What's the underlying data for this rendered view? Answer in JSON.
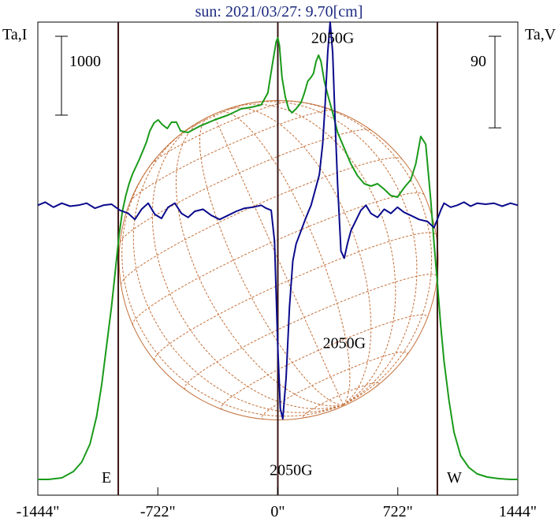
{
  "chart_data": {
    "type": "line",
    "title": "sun: 2021/03/27: 9.70[cm]",
    "left_axis_label": "Ta,I",
    "right_axis_label": "Ta,V",
    "left_scale_label": "1000",
    "right_scale_label": "90",
    "left_scale_value": 1000,
    "right_scale_value": 90,
    "xlim": [
      -1444,
      1444
    ],
    "x_ticks": [
      -1444,
      -722,
      0,
      722,
      1444
    ],
    "x_tick_labels": [
      "-1444\"",
      "-722\"",
      "0\"",
      "722\"",
      "1444\""
    ],
    "limb_labels": [
      "E",
      "W"
    ],
    "limb_positions": [
      -960,
      960
    ],
    "ta_i_ylim": [
      -200,
      5800
    ],
    "ta_v_ylim": [
      -285,
      180
    ],
    "colors": {
      "title": "#1b2a80",
      "ta_i": "#1a9a1a",
      "ta_v": "#0a0a8c",
      "disk": "#c4703a",
      "frame": "#000000",
      "markers": "#3a1414"
    },
    "annotations": [
      {
        "text": "2050G",
        "x": 330,
        "ta_v": 165
      },
      {
        "text": "2050G",
        "x": 80,
        "ta_v": -260
      },
      {
        "text": "2050G",
        "x": 400,
        "ta_v": -135
      }
    ],
    "series": [
      {
        "name": "Ta,I",
        "x": [
          -1444,
          -1380,
          -1300,
          -1230,
          -1180,
          -1130,
          -1090,
          -1060,
          -1030,
          -1000,
          -975,
          -955,
          -935,
          -915,
          -895,
          -875,
          -855,
          -835,
          -815,
          -790,
          -770,
          -745,
          -720,
          -695,
          -665,
          -640,
          -610,
          -585,
          -540,
          -470,
          -380,
          -300,
          -220,
          -160,
          -100,
          -60,
          -30,
          -10,
          0,
          10,
          25,
          45,
          65,
          85,
          110,
          140,
          160,
          180,
          200,
          215,
          230,
          245,
          260,
          280,
          300,
          330,
          360,
          400,
          440,
          480,
          520,
          560,
          600,
          640,
          680,
          720,
          760,
          800,
          830,
          860,
          890,
          920,
          940,
          960,
          980,
          1000,
          1030,
          1060,
          1100,
          1150,
          1200,
          1260,
          1330,
          1400,
          1444
        ],
        "values": [
          0,
          0,
          20,
          100,
          220,
          450,
          800,
          1200,
          1700,
          2200,
          2700,
          3100,
          3400,
          3600,
          3750,
          3870,
          3960,
          4050,
          4150,
          4280,
          4420,
          4520,
          4560,
          4500,
          4450,
          4530,
          4530,
          4420,
          4400,
          4480,
          4560,
          4620,
          4700,
          4720,
          4750,
          4900,
          5300,
          5550,
          5600,
          5500,
          5100,
          4850,
          4700,
          4650,
          4700,
          4780,
          4900,
          5050,
          5100,
          5150,
          5300,
          5380,
          5300,
          5050,
          4880,
          4650,
          4400,
          4200,
          4000,
          3850,
          3750,
          3720,
          3750,
          3680,
          3600,
          3580,
          3700,
          3800,
          4000,
          4350,
          4250,
          3550,
          3000,
          2500,
          1950,
          1500,
          1000,
          600,
          300,
          150,
          70,
          30,
          10,
          0,
          0
        ]
      },
      {
        "name": "Ta,V",
        "x": [
          -1444,
          -1400,
          -1350,
          -1300,
          -1250,
          -1200,
          -1150,
          -1100,
          -1050,
          -1000,
          -950,
          -900,
          -860,
          -820,
          -780,
          -740,
          -700,
          -660,
          -620,
          -580,
          -540,
          -500,
          -450,
          -400,
          -350,
          -300,
          -250,
          -200,
          -150,
          -100,
          -70,
          -40,
          -20,
          0,
          15,
          30,
          50,
          70,
          90,
          110,
          140,
          170,
          200,
          230,
          250,
          270,
          285,
          300,
          315,
          330,
          345,
          360,
          380,
          400,
          420,
          440,
          470,
          500,
          530,
          560,
          600,
          640,
          680,
          720,
          760,
          800,
          850,
          900,
          940,
          960,
          980,
          1000,
          1040,
          1080,
          1120,
          1160,
          1200,
          1250,
          1300,
          1350,
          1400,
          1444
        ],
        "values": [
          0,
          3,
          -2,
          2,
          -1,
          0,
          2,
          -3,
          0,
          1,
          -5,
          -8,
          -14,
          -4,
          2,
          -9,
          -13,
          -2,
          2,
          -8,
          -12,
          -6,
          -4,
          -10,
          -14,
          -10,
          -6,
          -3,
          -2,
          0,
          -3,
          -5,
          -35,
          -140,
          -200,
          -210,
          -170,
          -100,
          -55,
          -38,
          -25,
          -12,
          0,
          18,
          30,
          60,
          100,
          150,
          180,
          150,
          80,
          20,
          -45,
          -52,
          -37,
          -25,
          -15,
          -5,
          0,
          -8,
          -12,
          -4,
          -8,
          -2,
          -7,
          -10,
          -14,
          -16,
          -22,
          -14,
          -5,
          2,
          -2,
          0,
          3,
          -1,
          2,
          1,
          2,
          -1,
          2,
          0
        ]
      }
    ]
  }
}
